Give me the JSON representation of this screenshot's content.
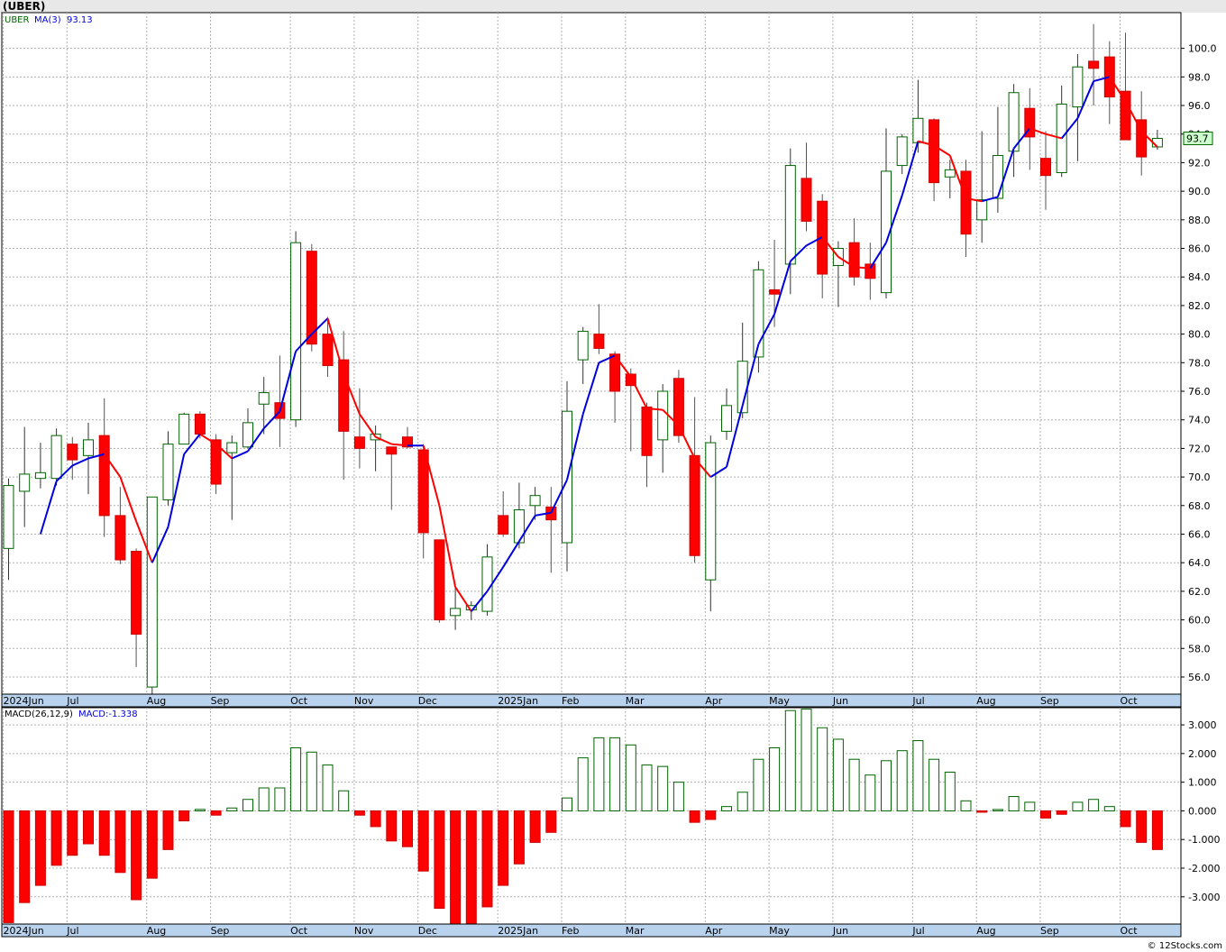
{
  "title": "(UBER)",
  "footer": "© 12Stocks.com",
  "price_legend": {
    "symbol": "UBER",
    "ma_label": "MA(3)",
    "ma_value": "93.13"
  },
  "macd_legend": {
    "label": "MACD(26,12,9)",
    "value_label": "MACD:-1.338"
  },
  "last_price_label": "93.7",
  "colors": {
    "up": "#006400",
    "down": "#ff0000",
    "ma_up": "#0000dd",
    "ma_down": "#ff0000",
    "grid": "#b0b0b0",
    "axis_bar": "#b9d3ee"
  },
  "chart_data": [
    {
      "type": "candlestick",
      "title": "(UBER)",
      "period": "weekly",
      "ylim": [
        54.8,
        102.5
      ],
      "yticks": [
        56,
        58,
        60,
        62,
        64,
        66,
        68,
        70,
        72,
        74,
        76,
        78,
        80,
        82,
        84,
        86,
        88,
        90,
        92,
        94,
        96,
        98,
        100
      ],
      "ytick_labels": [
        "56.0",
        "58.0",
        "60.0",
        "62.0",
        "64.0",
        "66.0",
        "68.0",
        "70.0",
        "72.0",
        "74.0",
        "76.0",
        "78.0",
        "80.0",
        "82.0",
        "84.0",
        "86.0",
        "88.0",
        "90.0",
        "92.0",
        "94.0",
        "96.0",
        "98.0",
        "100.0"
      ],
      "month_labels": [
        {
          "label": "2024Jun",
          "index": 0
        },
        {
          "label": "Jul",
          "index": 4
        },
        {
          "label": "Aug",
          "index": 9
        },
        {
          "label": "Sep",
          "index": 13
        },
        {
          "label": "Oct",
          "index": 18
        },
        {
          "label": "Nov",
          "index": 22
        },
        {
          "label": "Dec",
          "index": 26
        },
        {
          "label": "2025Jan",
          "index": 31
        },
        {
          "label": "Feb",
          "index": 35
        },
        {
          "label": "Mar",
          "index": 39
        },
        {
          "label": "Apr",
          "index": 44
        },
        {
          "label": "May",
          "index": 48
        },
        {
          "label": "Jun",
          "index": 52
        },
        {
          "label": "Jul",
          "index": 57
        },
        {
          "label": "Aug",
          "index": 61
        },
        {
          "label": "Sep",
          "index": 65
        },
        {
          "label": "Oct",
          "index": 70
        }
      ],
      "candles": [
        {
          "o": 65.0,
          "h": 69.9,
          "l": 62.8,
          "c": 69.4
        },
        {
          "o": 69.0,
          "h": 73.5,
          "l": 66.5,
          "c": 70.2
        },
        {
          "o": 69.9,
          "h": 72.4,
          "l": 69.2,
          "c": 70.3
        },
        {
          "o": 69.9,
          "h": 73.4,
          "l": 69.4,
          "c": 72.9
        },
        {
          "o": 72.3,
          "h": 72.8,
          "l": 69.8,
          "c": 71.2
        },
        {
          "o": 71.5,
          "h": 73.8,
          "l": 68.8,
          "c": 72.6
        },
        {
          "o": 72.9,
          "h": 75.5,
          "l": 65.8,
          "c": 67.3
        },
        {
          "o": 67.3,
          "h": 69.3,
          "l": 63.9,
          "c": 64.2
        },
        {
          "o": 64.8,
          "h": 65.0,
          "l": 56.7,
          "c": 59.0
        },
        {
          "o": 55.3,
          "h": 68.4,
          "l": 54.8,
          "c": 68.6
        },
        {
          "o": 68.4,
          "h": 73.2,
          "l": 68.0,
          "c": 72.3
        },
        {
          "o": 72.3,
          "h": 74.5,
          "l": 72.3,
          "c": 74.4
        },
        {
          "o": 74.4,
          "h": 74.6,
          "l": 72.7,
          "c": 73.0
        },
        {
          "o": 72.6,
          "h": 73.0,
          "l": 68.8,
          "c": 69.5
        },
        {
          "o": 71.7,
          "h": 72.9,
          "l": 67.0,
          "c": 72.4
        },
        {
          "o": 72.1,
          "h": 74.8,
          "l": 72.0,
          "c": 73.8
        },
        {
          "o": 75.1,
          "h": 77.0,
          "l": 73.0,
          "c": 75.9
        },
        {
          "o": 75.2,
          "h": 78.5,
          "l": 72.1,
          "c": 74.1
        },
        {
          "o": 74.0,
          "h": 87.2,
          "l": 73.5,
          "c": 86.4
        },
        {
          "o": 85.8,
          "h": 86.3,
          "l": 78.8,
          "c": 79.3
        },
        {
          "o": 80.0,
          "h": 81.2,
          "l": 77.0,
          "c": 77.8
        },
        {
          "o": 78.2,
          "h": 80.2,
          "l": 69.8,
          "c": 73.2
        },
        {
          "o": 72.8,
          "h": 76.2,
          "l": 70.6,
          "c": 72.0
        },
        {
          "o": 72.6,
          "h": 73.6,
          "l": 70.4,
          "c": 73.0
        },
        {
          "o": 72.1,
          "h": 72.1,
          "l": 67.7,
          "c": 71.6
        },
        {
          "o": 72.8,
          "h": 73.5,
          "l": 72.0,
          "c": 72.1
        },
        {
          "o": 71.9,
          "h": 72.3,
          "l": 64.3,
          "c": 66.1
        },
        {
          "o": 65.6,
          "h": 65.6,
          "l": 59.8,
          "c": 60.0
        },
        {
          "o": 60.3,
          "h": 62.3,
          "l": 59.3,
          "c": 60.8
        },
        {
          "o": 60.7,
          "h": 61.3,
          "l": 60.0,
          "c": 61.0
        },
        {
          "o": 60.6,
          "h": 65.3,
          "l": 60.3,
          "c": 64.4
        },
        {
          "o": 67.3,
          "h": 69.0,
          "l": 65.8,
          "c": 66.0
        },
        {
          "o": 65.4,
          "h": 69.6,
          "l": 65.0,
          "c": 67.7
        },
        {
          "o": 68.0,
          "h": 69.3,
          "l": 67.0,
          "c": 68.7
        },
        {
          "o": 67.9,
          "h": 69.3,
          "l": 63.3,
          "c": 67.0
        },
        {
          "o": 65.4,
          "h": 76.7,
          "l": 63.4,
          "c": 74.6
        },
        {
          "o": 78.2,
          "h": 80.5,
          "l": 76.5,
          "c": 80.2
        },
        {
          "o": 80.0,
          "h": 82.1,
          "l": 78.6,
          "c": 79.0
        },
        {
          "o": 78.6,
          "h": 78.8,
          "l": 73.8,
          "c": 76.0
        },
        {
          "o": 77.2,
          "h": 77.6,
          "l": 71.8,
          "c": 76.4
        },
        {
          "o": 74.9,
          "h": 75.2,
          "l": 69.3,
          "c": 71.5
        },
        {
          "o": 72.6,
          "h": 76.5,
          "l": 70.3,
          "c": 76.0
        },
        {
          "o": 76.9,
          "h": 77.5,
          "l": 72.4,
          "c": 72.9
        },
        {
          "o": 71.5,
          "h": 75.6,
          "l": 64.0,
          "c": 64.5
        },
        {
          "o": 62.8,
          "h": 72.9,
          "l": 60.6,
          "c": 72.4
        },
        {
          "o": 73.2,
          "h": 76.2,
          "l": 72.6,
          "c": 75.0
        },
        {
          "o": 74.5,
          "h": 80.8,
          "l": 74.1,
          "c": 78.1
        },
        {
          "o": 78.4,
          "h": 85.1,
          "l": 77.3,
          "c": 84.5
        },
        {
          "o": 83.1,
          "h": 86.6,
          "l": 80.5,
          "c": 82.8
        },
        {
          "o": 84.9,
          "h": 93.0,
          "l": 82.8,
          "c": 91.8
        },
        {
          "o": 90.9,
          "h": 93.4,
          "l": 87.2,
          "c": 87.9
        },
        {
          "o": 89.3,
          "h": 89.8,
          "l": 82.5,
          "c": 84.2
        },
        {
          "o": 84.8,
          "h": 86.5,
          "l": 81.9,
          "c": 86.0
        },
        {
          "o": 86.4,
          "h": 88.1,
          "l": 83.4,
          "c": 84.0
        },
        {
          "o": 84.9,
          "h": 86.4,
          "l": 82.4,
          "c": 83.9
        },
        {
          "o": 82.9,
          "h": 94.4,
          "l": 82.5,
          "c": 91.4
        },
        {
          "o": 91.8,
          "h": 94.0,
          "l": 91.2,
          "c": 93.8
        },
        {
          "o": 93.4,
          "h": 97.8,
          "l": 92.7,
          "c": 95.1
        },
        {
          "o": 95.0,
          "h": 95.1,
          "l": 89.3,
          "c": 90.6
        },
        {
          "o": 91.0,
          "h": 92.2,
          "l": 89.5,
          "c": 91.5
        },
        {
          "o": 91.4,
          "h": 92.2,
          "l": 85.4,
          "c": 87.0
        },
        {
          "o": 88.0,
          "h": 94.2,
          "l": 86.4,
          "c": 89.4
        },
        {
          "o": 89.5,
          "h": 95.9,
          "l": 88.5,
          "c": 92.5
        },
        {
          "o": 92.8,
          "h": 97.5,
          "l": 91.0,
          "c": 96.9
        },
        {
          "o": 95.8,
          "h": 97.2,
          "l": 91.5,
          "c": 93.8
        },
        {
          "o": 92.3,
          "h": 94.2,
          "l": 88.7,
          "c": 91.1
        },
        {
          "o": 91.3,
          "h": 97.4,
          "l": 91.0,
          "c": 96.1
        },
        {
          "o": 95.9,
          "h": 99.6,
          "l": 92.1,
          "c": 98.7
        },
        {
          "o": 99.1,
          "h": 101.7,
          "l": 96.0,
          "c": 98.6
        },
        {
          "o": 99.4,
          "h": 100.5,
          "l": 94.7,
          "c": 96.6
        },
        {
          "o": 97.0,
          "h": 101.1,
          "l": 93.7,
          "c": 93.6
        },
        {
          "o": 95.0,
          "h": 97.0,
          "l": 91.1,
          "c": 92.4
        },
        {
          "o": 93.1,
          "h": 94.3,
          "l": 92.9,
          "c": 93.7
        }
      ],
      "ma3": [
        null,
        null,
        66.0,
        69.7,
        70.8,
        71.3,
        71.6,
        70.0,
        66.9,
        64.0,
        66.5,
        71.6,
        73.0,
        72.3,
        71.3,
        71.8,
        73.4,
        74.6,
        78.8,
        80.0,
        81.1,
        77.2,
        74.4,
        72.8,
        72.3,
        72.2,
        72.2,
        68.0,
        62.3,
        60.6,
        62.0,
        63.7,
        65.5,
        67.3,
        67.5,
        69.8,
        74.4,
        78.0,
        78.5,
        77.0,
        74.8,
        74.7,
        73.6,
        71.3,
        70.0,
        70.7,
        75.0,
        79.3,
        81.4,
        85.1,
        86.2,
        86.8,
        85.4,
        84.7,
        84.6,
        86.4,
        89.7,
        93.5,
        93.2,
        92.5,
        89.5,
        89.3,
        89.6,
        93.0,
        94.4,
        94.0,
        93.7,
        95.1,
        97.7,
        98.0,
        96.3,
        94.2,
        93.1
      ]
    },
    {
      "type": "bar",
      "title": "MACD(26,12,9)",
      "value_label": "MACD:-1.338",
      "ylim": [
        -3.95,
        3.6
      ],
      "yticks": [
        -3,
        -2,
        -1,
        0,
        1,
        2,
        3
      ],
      "ytick_labels": [
        "-3.000",
        "-2.000",
        "-1.000",
        "0.000",
        "1.000",
        "2.000",
        "3.000"
      ],
      "values": [
        -3.9,
        -3.2,
        -2.6,
        -1.9,
        -1.55,
        -1.15,
        -1.55,
        -2.15,
        -3.1,
        -2.35,
        -1.35,
        -0.35,
        0.05,
        -0.15,
        0.1,
        0.4,
        0.8,
        0.8,
        2.2,
        2.05,
        1.6,
        0.7,
        -0.15,
        -0.55,
        -1.05,
        -1.25,
        -2.1,
        -3.4,
        -3.95,
        -3.95,
        -3.35,
        -2.6,
        -1.85,
        -1.1,
        -0.75,
        0.45,
        1.85,
        2.55,
        2.55,
        2.3,
        1.6,
        1.55,
        1.0,
        -0.4,
        -0.3,
        0.15,
        0.65,
        1.8,
        2.2,
        3.5,
        3.55,
        2.9,
        2.5,
        1.8,
        1.25,
        1.75,
        2.1,
        2.45,
        1.8,
        1.35,
        0.35,
        -0.03,
        0.02,
        0.5,
        0.3,
        -0.25,
        -0.12,
        0.3,
        0.4,
        0.15,
        -0.55,
        -1.1,
        -1.35
      ]
    }
  ]
}
